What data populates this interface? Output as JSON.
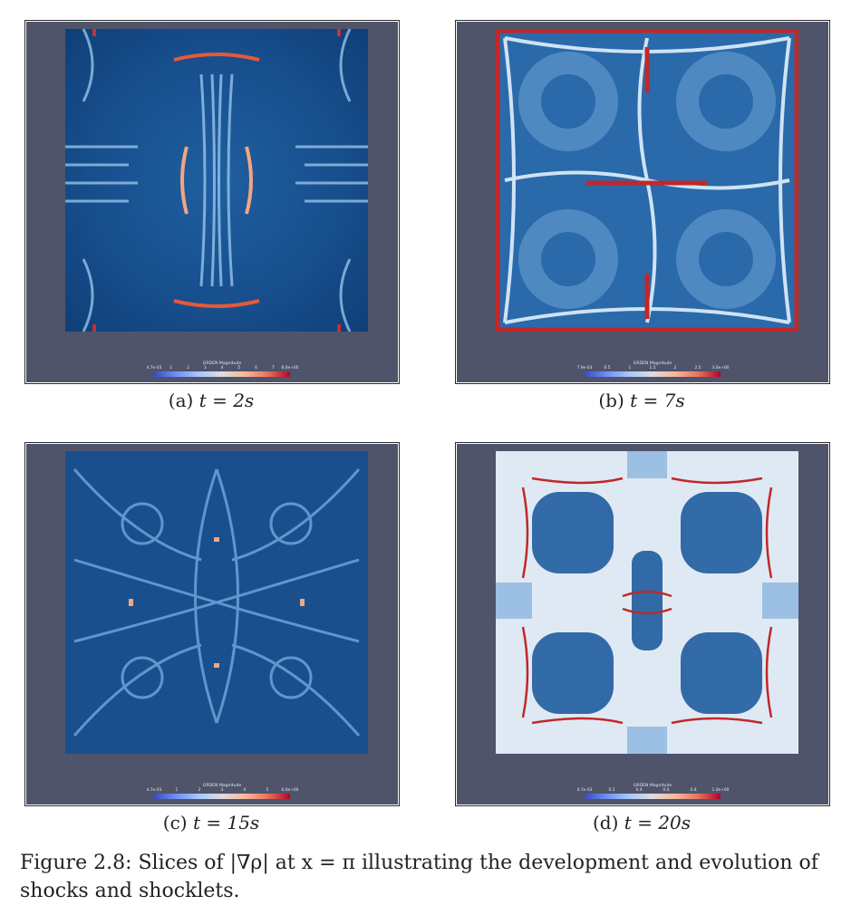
{
  "panels": [
    {
      "id": "a",
      "caption_label": "(a)",
      "caption_equation": "t = 2s",
      "colorbar": {
        "title": "GRDEN Magnitude",
        "ticks": [
          "4.7e-03",
          "1",
          "2",
          "3",
          "4",
          "5",
          "6",
          "7",
          "8.0e+00"
        ]
      }
    },
    {
      "id": "b",
      "caption_label": "(b)",
      "caption_equation": "t = 7s",
      "colorbar": {
        "title": "GRDEN Magnitude",
        "ticks": [
          "7.9e-03",
          "0.5",
          "1",
          "1.5",
          "2",
          "2.5",
          "3.0e+00"
        ]
      }
    },
    {
      "id": "c",
      "caption_label": "(c)",
      "caption_equation": "t = 15s",
      "colorbar": {
        "title": "GRDEN Magnitude",
        "ticks": [
          "4.7e-03",
          "1",
          "2",
          "3",
          "4",
          "5",
          "6.0e+00"
        ]
      }
    },
    {
      "id": "d",
      "caption_label": "(d)",
      "caption_equation": "t = 20s",
      "colorbar": {
        "title": "GRDEN Magnitude",
        "ticks": [
          "4.7e-03",
          "0.2",
          "0.4",
          "0.6",
          "0.8",
          "1.0e+00"
        ]
      }
    }
  ],
  "figure_caption": "Figure 2.8: Slices of |∇ρ| at x = π illustrating the development and evolution of shocks and shocklets.",
  "colormap": {
    "low": "#3b4cc0",
    "mid": "#dddddd",
    "high": "#b40426",
    "background": "#4f546b"
  }
}
